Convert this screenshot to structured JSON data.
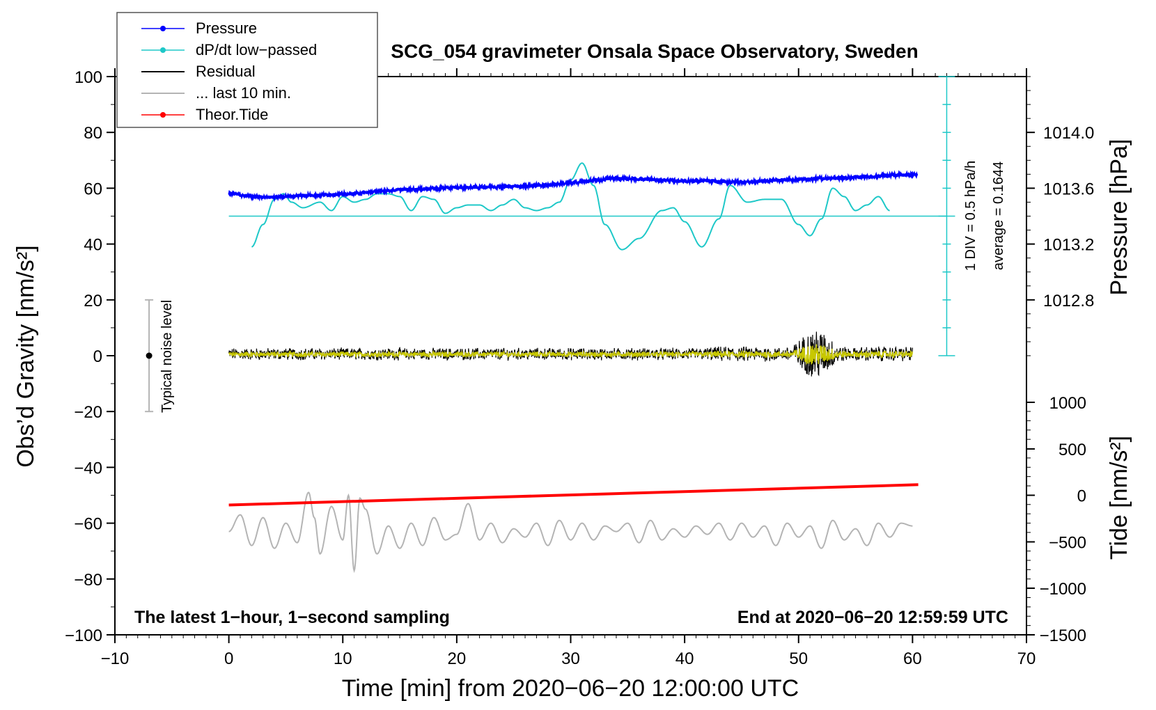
{
  "chart_data": {
    "type": "line",
    "title": "SCG_054 gravimeter Onsala Space Observatory, Sweden",
    "xlabel": "Time [min] from 2020−06−20 12:00:00 UTC",
    "ylabel": "Obs’d Gravity [nm/s²]",
    "ylabel_right_pressure": "Pressure [hPa]",
    "ylabel_right_tide": "Tide [nm/s²]",
    "xlim": [
      -10,
      70
    ],
    "ylim": [
      -100,
      100
    ],
    "xticks": [
      -10,
      0,
      10,
      20,
      30,
      40,
      50,
      60,
      70
    ],
    "xtick_labels": [
      "−10",
      "0",
      "10",
      "20",
      "30",
      "40",
      "50",
      "60",
      "70"
    ],
    "yticks": [
      -100,
      -80,
      -60,
      -40,
      -20,
      0,
      20,
      40,
      60,
      80,
      100
    ],
    "ytick_labels": [
      "−100",
      "−80",
      "−60",
      "−40",
      "−20",
      "0",
      "20",
      "40",
      "60",
      "80",
      "100"
    ],
    "pressure_axis": {
      "ticks": [
        1014.0,
        1013.6,
        1013.2,
        1012.8
      ],
      "tick_labels": [
        "1014.0",
        "1013.6",
        "1013.2",
        "1012.8"
      ],
      "gravity_equiv": [
        80,
        60,
        40,
        20
      ]
    },
    "tide_axis": {
      "ticks": [
        1000,
        500,
        0,
        -500,
        -1000,
        -1500
      ],
      "tick_labels": [
        "1000",
        "500",
        "0",
        "−500",
        "−1000",
        "−1500"
      ],
      "gravity_equiv": [
        -16.7,
        -33.4,
        -50,
        -66.7,
        -83.3,
        -100
      ]
    },
    "legend": {
      "placement": "top-left",
      "entries": [
        "Pressure",
        "dP/dt low−passed",
        "Residual",
        "... last 10 min.",
        "Theor.Tide"
      ]
    },
    "annotations": {
      "sampling_note": "The latest 1−hour, 1−second sampling",
      "end_note": "End at 2020−06−20 12:59:59 UTC",
      "noise_label": "Typical noise level",
      "noise_bar": {
        "x": -7,
        "y_center": 0,
        "y_low": -20,
        "y_high": 20
      },
      "dpdt_scale": "1 DIV = 0.5 hPa/h",
      "dpdt_average": "average = 0.1644",
      "dpdt_scale_x": 63,
      "dpdt_baseline_y": 50
    },
    "series": [
      {
        "name": "Pressure",
        "color": "#0000ff",
        "x": [
          0,
          2,
          4,
          6,
          8,
          10,
          12,
          14,
          16,
          18,
          20,
          22,
          24,
          26,
          28,
          30,
          32,
          34,
          36,
          38,
          40,
          42,
          44,
          46,
          48,
          50,
          52,
          54,
          56,
          58,
          60
        ],
        "values": [
          58.3,
          57.0,
          56.8,
          57.3,
          57.6,
          57.8,
          58.4,
          59.2,
          59.6,
          59.9,
          60.2,
          60.4,
          60.6,
          60.8,
          61.2,
          61.9,
          62.8,
          63.6,
          63.3,
          62.9,
          62.6,
          62.6,
          62.2,
          62.3,
          62.9,
          63.1,
          63.5,
          63.6,
          64.1,
          64.6,
          64.8
        ]
      },
      {
        "name": "dP/dt low−passed",
        "color": "#1ec8c8",
        "x": [
          2,
          3,
          4,
          4.8,
          5.5,
          6.5,
          8,
          9,
          10,
          11,
          12,
          13,
          14,
          15,
          16,
          17,
          18,
          19,
          20,
          21,
          22,
          23,
          24,
          25,
          26,
          27,
          28,
          29,
          30,
          31,
          32,
          33,
          34.5,
          36,
          38,
          39,
          40,
          41.5,
          43,
          44,
          45.5,
          47,
          48.5,
          50,
          51,
          52,
          53,
          54,
          55,
          56,
          57,
          58
        ],
        "values": [
          39,
          47,
          56,
          58,
          55,
          53,
          55,
          52,
          57,
          55,
          56,
          58,
          58,
          57,
          52,
          57,
          56,
          51,
          53,
          54,
          54,
          52,
          54,
          56,
          53,
          52,
          53,
          55,
          63,
          69,
          61,
          47,
          38,
          42,
          52,
          53,
          48,
          39,
          49,
          61,
          55,
          56,
          56,
          47,
          43,
          49,
          60,
          57,
          52,
          54,
          57,
          52
        ]
      },
      {
        "name": "Residual",
        "color": "#000000"
      },
      {
        "name": "Residual (smoothed)",
        "color": "#c8c800"
      },
      {
        "name": "... last 10 min.",
        "color": "#b4b4b4",
        "x": [
          0,
          1,
          2,
          3,
          4,
          5,
          6,
          7,
          7.5,
          8,
          9,
          10,
          10.5,
          11,
          11.5,
          12,
          13,
          14,
          15,
          16,
          17,
          18,
          19,
          20,
          21,
          22,
          23,
          24,
          25,
          26,
          27,
          28,
          29,
          30,
          31,
          32,
          33,
          34,
          35,
          36,
          37,
          38,
          39,
          40,
          41,
          42,
          43,
          44,
          45,
          46,
          47,
          48,
          49,
          50,
          51,
          52,
          53,
          54,
          55,
          56,
          57,
          58,
          59,
          60
        ],
        "values": [
          -63,
          -57,
          -68,
          -58,
          -69,
          -60,
          -67,
          -49,
          -58,
          -71,
          -54,
          -66,
          -50,
          -77,
          -51,
          -55,
          -71,
          -61,
          -69,
          -60,
          -68,
          -58,
          -66,
          -64,
          -53,
          -66,
          -60,
          -67,
          -62,
          -65,
          -60,
          -68,
          -59,
          -66,
          -60,
          -66,
          -61,
          -63,
          -60,
          -67,
          -59,
          -66,
          -62,
          -65,
          -61,
          -64,
          -60,
          -66,
          -60,
          -65,
          -61,
          -68,
          -60,
          -65,
          -61,
          -69,
          -59,
          -66,
          -62,
          -68,
          -60,
          -65,
          -60,
          -61
        ]
      },
      {
        "name": "Theor.Tide",
        "color": "#ff0000",
        "x": [
          0,
          60.5
        ],
        "values": [
          -53.5,
          -46.2
        ]
      }
    ]
  }
}
